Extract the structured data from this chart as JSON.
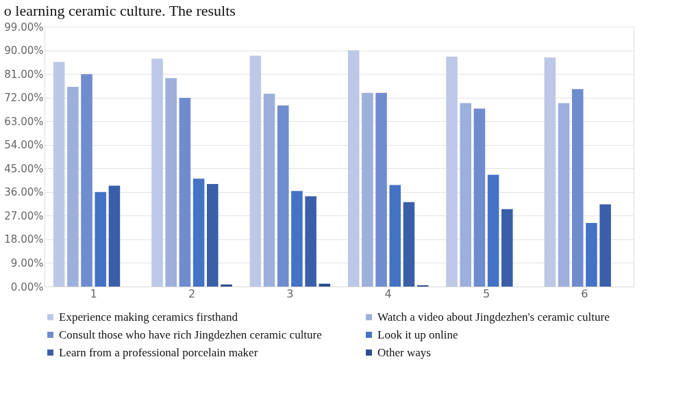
{
  "chart_data": {
    "type": "bar",
    "annotations": [
      "o learning ceramic culture. The results"
    ],
    "categories": [
      "1",
      "2",
      "3",
      "4",
      "5",
      "6"
    ],
    "series": [
      {
        "name": "Experience making ceramics firsthand",
        "color": "#bcc8e6",
        "values": [
          85.6,
          86.8,
          87.9,
          90.0,
          87.6,
          87.3
        ]
      },
      {
        "name": "Watch a video about Jingdezhen's ceramic culture",
        "color": "#9dafdb",
        "values": [
          76.1,
          79.4,
          73.5,
          73.8,
          69.9,
          69.9
        ]
      },
      {
        "name": "Consult those who have rich Jingdezhen ceramic culture",
        "color": "#6f8ccf",
        "values": [
          80.9,
          71.9,
          69.0,
          73.8,
          67.8,
          75.2
        ]
      },
      {
        "name": "Look it up online",
        "color": "#4472c4",
        "values": [
          36.0,
          41.1,
          36.4,
          38.7,
          42.6,
          24.2
        ]
      },
      {
        "name": "Learn from a professional porcelain maker",
        "color": "#3a5fa8",
        "values": [
          38.4,
          39.1,
          34.4,
          32.2,
          29.5,
          31.3
        ]
      },
      {
        "name": "Other ways",
        "color": "#2f4d8c",
        "values": [
          null,
          0.8,
          1.1,
          0.5,
          null,
          null
        ]
      }
    ],
    "ylim": [
      0,
      99
    ],
    "yticks": [
      {
        "value": 0,
        "label": "0.00%"
      },
      {
        "value": 9,
        "label": "9.00%"
      },
      {
        "value": 18,
        "label": "18.00%"
      },
      {
        "value": 27,
        "label": "27.00%"
      },
      {
        "value": 36,
        "label": "36.00%"
      },
      {
        "value": 45,
        "label": "45.00%"
      },
      {
        "value": 54,
        "label": "54.00%"
      },
      {
        "value": 63,
        "label": "63.00%"
      },
      {
        "value": 72,
        "label": "72.00%"
      },
      {
        "value": 81,
        "label": "81.00%"
      },
      {
        "value": 90,
        "label": "90.00%"
      },
      {
        "value": 99,
        "label": "99.00%"
      }
    ],
    "grid": "y",
    "legend": "bottom"
  }
}
